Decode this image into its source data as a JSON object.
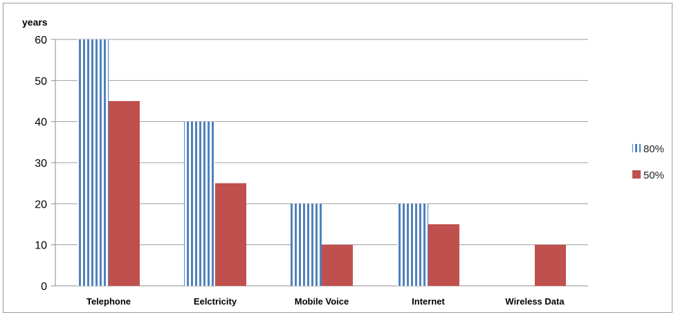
{
  "chart_data": {
    "type": "bar",
    "ylabel": "years",
    "xlabel": "",
    "ylim": [
      0,
      60
    ],
    "yticks": [
      0,
      10,
      20,
      30,
      40,
      50,
      60
    ],
    "grid": true,
    "legend_position": "right",
    "categories": [
      "Telephone",
      "Eelctricity",
      "Mobile Voice",
      "Internet",
      "Wireless Data"
    ],
    "series": [
      {
        "name": "80%",
        "values": [
          60,
          40,
          20,
          20,
          null
        ],
        "color": "#4f81bd",
        "pattern": "vertical-stripes"
      },
      {
        "name": "50%",
        "values": [
          45,
          25,
          10,
          15,
          10
        ],
        "color": "#c0504d",
        "pattern": "solid"
      }
    ]
  }
}
